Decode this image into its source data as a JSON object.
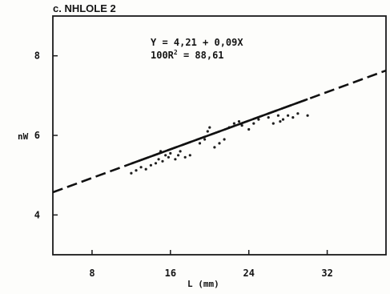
{
  "chart_data": {
    "type": "scatter",
    "title": "c. NHLOLE 2",
    "xlabel": "L (mm)",
    "ylabel": "nW",
    "xlim": [
      4,
      38
    ],
    "ylim": [
      3,
      9
    ],
    "xticks": [
      8,
      16,
      24,
      32
    ],
    "yticks": [
      4,
      6,
      8
    ],
    "grid": false,
    "annotations": {
      "equation": "Y = 4,21 + 0,09X",
      "r2_prefix": "100R",
      "r2_sup": "2",
      "r2_value": " = 88,61"
    },
    "regression": {
      "intercept": 4.21,
      "slope": 0.09,
      "style": "dashed",
      "solid_range": [
        12,
        30
      ]
    },
    "series": [
      {
        "points": [
          [
            12.0,
            5.05
          ],
          [
            12.5,
            5.12
          ],
          [
            13.0,
            5.2
          ],
          [
            13.5,
            5.15
          ],
          [
            14.0,
            5.25
          ],
          [
            14.5,
            5.3
          ],
          [
            14.8,
            5.4
          ],
          [
            15.0,
            5.6
          ],
          [
            15.2,
            5.35
          ],
          [
            15.5,
            5.5
          ],
          [
            15.8,
            5.45
          ],
          [
            16.0,
            5.55
          ],
          [
            16.5,
            5.4
          ],
          [
            16.8,
            5.5
          ],
          [
            17.0,
            5.6
          ],
          [
            17.5,
            5.45
          ],
          [
            18.0,
            5.5
          ],
          [
            19.0,
            5.8
          ],
          [
            19.5,
            5.9
          ],
          [
            19.8,
            6.1
          ],
          [
            20.0,
            6.2
          ],
          [
            20.5,
            5.7
          ],
          [
            21.0,
            5.8
          ],
          [
            21.5,
            5.9
          ],
          [
            22.0,
            6.2
          ],
          [
            22.5,
            6.3
          ],
          [
            23.0,
            6.35
          ],
          [
            23.3,
            6.25
          ],
          [
            24.0,
            6.15
          ],
          [
            24.5,
            6.3
          ],
          [
            25.0,
            6.4
          ],
          [
            26.0,
            6.45
          ],
          [
            26.5,
            6.3
          ],
          [
            27.0,
            6.5
          ],
          [
            27.2,
            6.35
          ],
          [
            27.5,
            6.4
          ],
          [
            28.0,
            6.5
          ],
          [
            28.5,
            6.45
          ],
          [
            29.0,
            6.55
          ],
          [
            30.0,
            6.5
          ]
        ]
      }
    ]
  }
}
